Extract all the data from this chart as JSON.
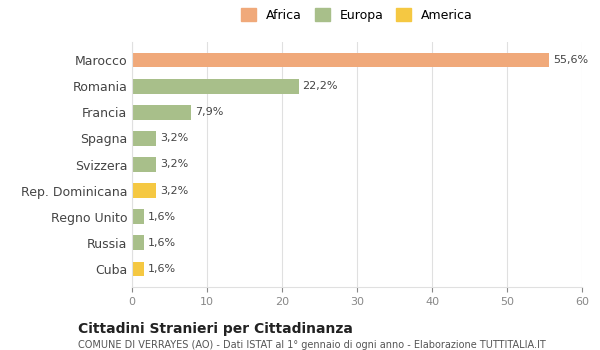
{
  "categories": [
    "Marocco",
    "Romania",
    "Francia",
    "Spagna",
    "Svizzera",
    "Rep. Dominicana",
    "Regno Unito",
    "Russia",
    "Cuba"
  ],
  "values": [
    55.6,
    22.2,
    7.9,
    3.2,
    3.2,
    3.2,
    1.6,
    1.6,
    1.6
  ],
  "labels": [
    "55,6%",
    "22,2%",
    "7,9%",
    "3,2%",
    "3,2%",
    "3,2%",
    "1,6%",
    "1,6%",
    "1,6%"
  ],
  "colors": [
    "#f0a97a",
    "#a8bf8a",
    "#a8bf8a",
    "#a8bf8a",
    "#a8bf8a",
    "#f5c842",
    "#a8bf8a",
    "#a8bf8a",
    "#f5c842"
  ],
  "legend": [
    {
      "label": "Africa",
      "color": "#f0a97a"
    },
    {
      "label": "Europa",
      "color": "#a8bf8a"
    },
    {
      "label": "America",
      "color": "#f5c842"
    }
  ],
  "xlim": [
    0,
    60
  ],
  "xticks": [
    0,
    10,
    20,
    30,
    40,
    50,
    60
  ],
  "title": "Cittadini Stranieri per Cittadinanza",
  "subtitle": "COMUNE DI VERRAYES (AO) - Dati ISTAT al 1° gennaio di ogni anno - Elaborazione TUTTITALIA.IT",
  "background_color": "#ffffff",
  "grid_color": "#e0e0e0",
  "bar_height": 0.55
}
